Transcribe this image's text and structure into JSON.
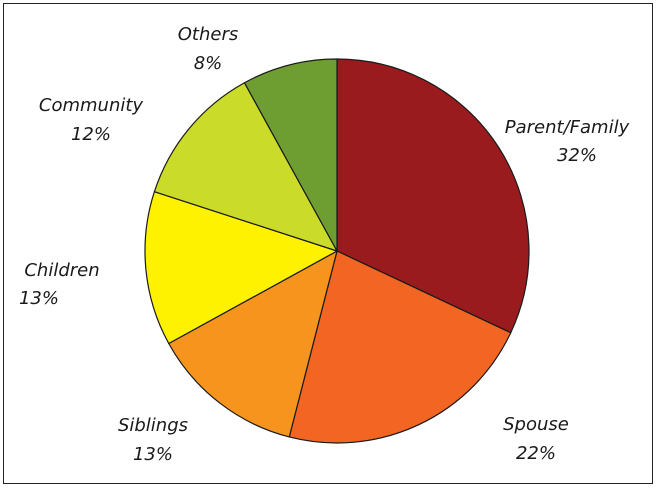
{
  "chart_data": {
    "type": "pie",
    "title": "",
    "legend": "none",
    "start_angle_deg": 0,
    "direction": "clockwise",
    "slices": [
      {
        "label": "Parent/Family",
        "value": 32,
        "value_label": "32%",
        "color": "#991b1e"
      },
      {
        "label": "Spouse",
        "value": 22,
        "value_label": "22%",
        "color": "#f26522"
      },
      {
        "label": "Siblings",
        "value": 13,
        "value_label": "13%",
        "color": "#f7941d"
      },
      {
        "label": "Children",
        "value": 13,
        "value_label": "13%",
        "color": "#fff200"
      },
      {
        "label": "Community",
        "value": 12,
        "value_label": "12%",
        "color": "#cbdb2a"
      },
      {
        "label": "Others",
        "value": 8,
        "value_label": "8%",
        "color": "#6e9e32"
      }
    ]
  }
}
